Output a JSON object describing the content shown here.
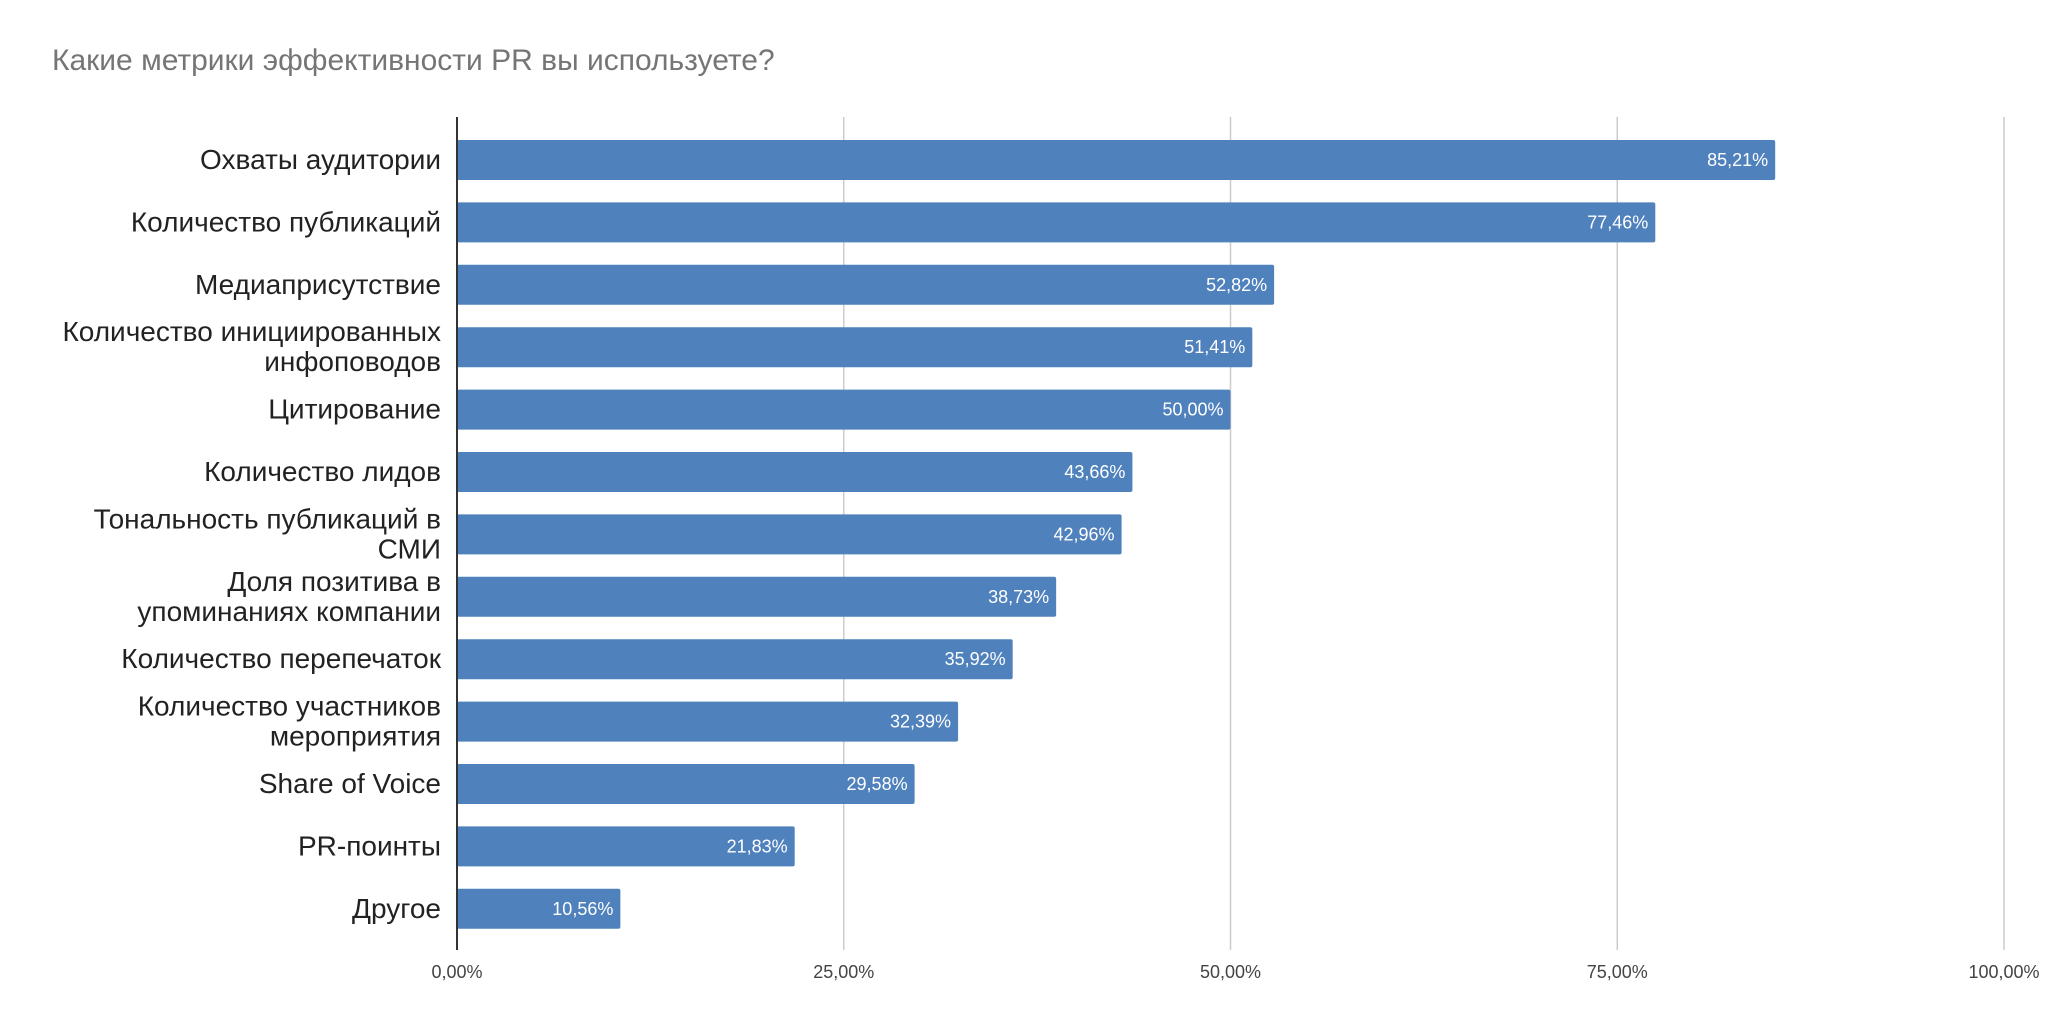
{
  "chart_data": {
    "type": "bar",
    "orientation": "horizontal",
    "title": "Какие метрики эффективности PR вы используете?",
    "categories": [
      "Охваты аудитории",
      "Количество публикаций",
      "Медиаприсутствие",
      "Количество инициированных инфоповодов",
      "Цитирование",
      "Количество лидов",
      "Тональность публикаций в СМИ",
      "Доля позитива в упоминаниях компании",
      "Количество перепечаток",
      "Количество участников мероприятия",
      "Share of Voice",
      "PR-поинты",
      "Другое"
    ],
    "category_lines": [
      [
        "Охваты аудитории"
      ],
      [
        "Количество публикаций"
      ],
      [
        "Медиаприсутствие"
      ],
      [
        "Количество инициированных",
        "инфоповодов"
      ],
      [
        "Цитирование"
      ],
      [
        "Количество лидов"
      ],
      [
        "Тональность публикаций в",
        "СМИ"
      ],
      [
        "Доля позитива в",
        "упоминаниях компании"
      ],
      [
        "Количество перепечаток"
      ],
      [
        "Количество участников",
        "мероприятия"
      ],
      [
        "Share of Voice"
      ],
      [
        "PR-поинты"
      ],
      [
        "Другое"
      ]
    ],
    "values": [
      85.21,
      77.46,
      52.82,
      51.41,
      50.0,
      43.66,
      42.96,
      38.73,
      35.92,
      32.39,
      29.58,
      21.83,
      10.56
    ],
    "data_labels": [
      "85,21%",
      "77,46%",
      "52,82%",
      "51,41%",
      "50,00%",
      "43,66%",
      "42,96%",
      "38,73%",
      "35,92%",
      "32,39%",
      "29,58%",
      "21,83%",
      "10,56%"
    ],
    "xlim": [
      0,
      100
    ],
    "x_ticks": [
      0,
      25,
      50,
      75,
      100
    ],
    "x_tick_labels": [
      "0,00%",
      "25,00%",
      "50,00%",
      "75,00%",
      "100,00%"
    ],
    "grid": true,
    "bar_color": "#4f81bd",
    "grid_color": "#cccccc",
    "axis_color": "#333333"
  }
}
